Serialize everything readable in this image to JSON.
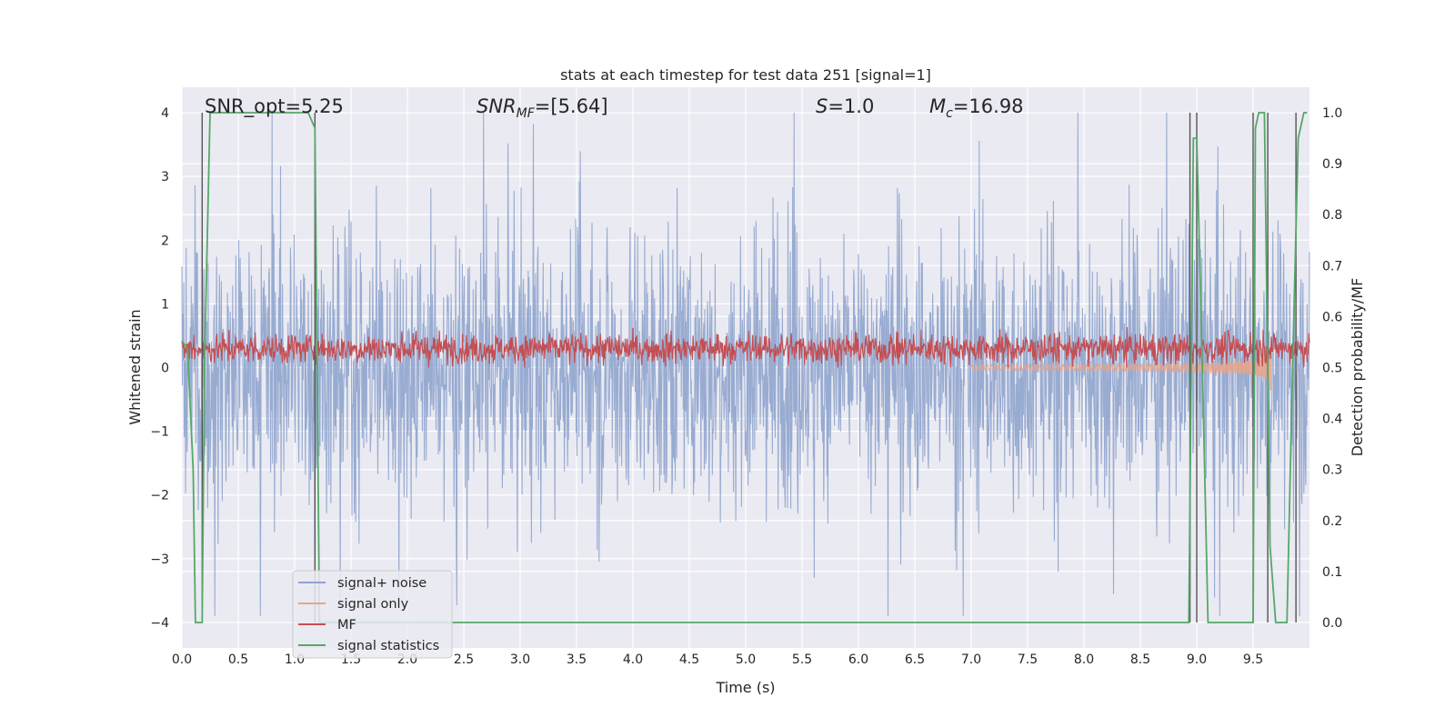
{
  "chart_data": {
    "type": "line",
    "title": "stats at each timestep for test data 251 [signal=1]",
    "xlabel": "Time (s)",
    "ylabel_left": "Whitened strain",
    "ylabel_right": "Detection probability/MF",
    "xlim": [
      0.0,
      10.0
    ],
    "ylim_left": [
      -4.4,
      4.4
    ],
    "ylim_right": [
      -0.05,
      1.05
    ],
    "grid": true,
    "legend_position": "lower-left",
    "x_ticks": [
      "0.0",
      "0.5",
      "1.0",
      "1.5",
      "2.0",
      "2.5",
      "3.0",
      "3.5",
      "4.0",
      "4.5",
      "5.0",
      "5.5",
      "6.0",
      "6.5",
      "7.0",
      "7.5",
      "8.0",
      "8.5",
      "9.0",
      "9.5"
    ],
    "y_ticks_left": [
      "−4",
      "−3",
      "−2",
      "−1",
      "0",
      "1",
      "2",
      "3",
      "4"
    ],
    "y_ticks_right": [
      "0.0",
      "0.1",
      "0.2",
      "0.3",
      "0.4",
      "0.5",
      "0.6",
      "0.7",
      "0.8",
      "0.9",
      "1.0"
    ],
    "annotations": {
      "snr_opt": "SNR_opt=5.25",
      "snr_mf_italic": "SNR",
      "snr_mf_sub": "MF",
      "snr_mf_value": "=[5.64]",
      "s_italic": "S",
      "s_value": "=1.0",
      "mc_italic": "M",
      "mc_sub": "c",
      "mc_value": "=16.98"
    },
    "series": [
      {
        "name": "signal+ noise",
        "color": "#8fa4cd",
        "style": "noise band, amplitude ~1.7, peaks to ±4"
      },
      {
        "name": "signal only",
        "color": "#e8a589",
        "style": "chirp growing toward merger near t=9.6s"
      },
      {
        "name": "MF",
        "color": "#c44e52",
        "style": "band between 0 and ~0.6 on left axis"
      },
      {
        "name": "signal statistics",
        "color": "#55a868",
        "x": [
          0.0,
          0.05,
          0.1,
          0.12,
          0.18,
          0.2,
          0.25,
          0.3,
          0.8,
          1.12,
          1.18,
          1.22,
          1.3,
          2.0,
          4.0,
          6.0,
          8.0,
          8.9,
          8.93,
          8.97,
          9.0,
          9.05,
          9.1,
          9.2,
          9.45,
          9.5,
          9.52,
          9.55,
          9.6,
          9.65,
          9.7,
          9.75,
          9.8,
          9.85,
          9.9,
          9.95,
          9.98
        ],
        "y": [
          0.55,
          0.54,
          0.3,
          0.0,
          0.0,
          0.5,
          1.0,
          1.0,
          1.0,
          1.0,
          0.97,
          0.0,
          0.0,
          0.0,
          0.0,
          0.0,
          0.0,
          0.0,
          0.0,
          0.95,
          0.95,
          0.5,
          0.0,
          0.0,
          0.0,
          0.0,
          0.97,
          1.0,
          1.0,
          0.15,
          0.0,
          0.0,
          0.0,
          0.5,
          0.95,
          1.0,
          1.0
        ]
      }
    ],
    "detection_markers_x": [
      0.18,
      1.18,
      8.94,
      9.0,
      9.5,
      9.63,
      9.88
    ]
  },
  "legend": {
    "items": [
      {
        "label": "signal+ noise",
        "color": "#8fa4cd"
      },
      {
        "label": "signal only",
        "color": "#e8a589"
      },
      {
        "label": "MF",
        "color": "#c44e52"
      },
      {
        "label": "signal statistics",
        "color": "#55a868"
      }
    ]
  }
}
